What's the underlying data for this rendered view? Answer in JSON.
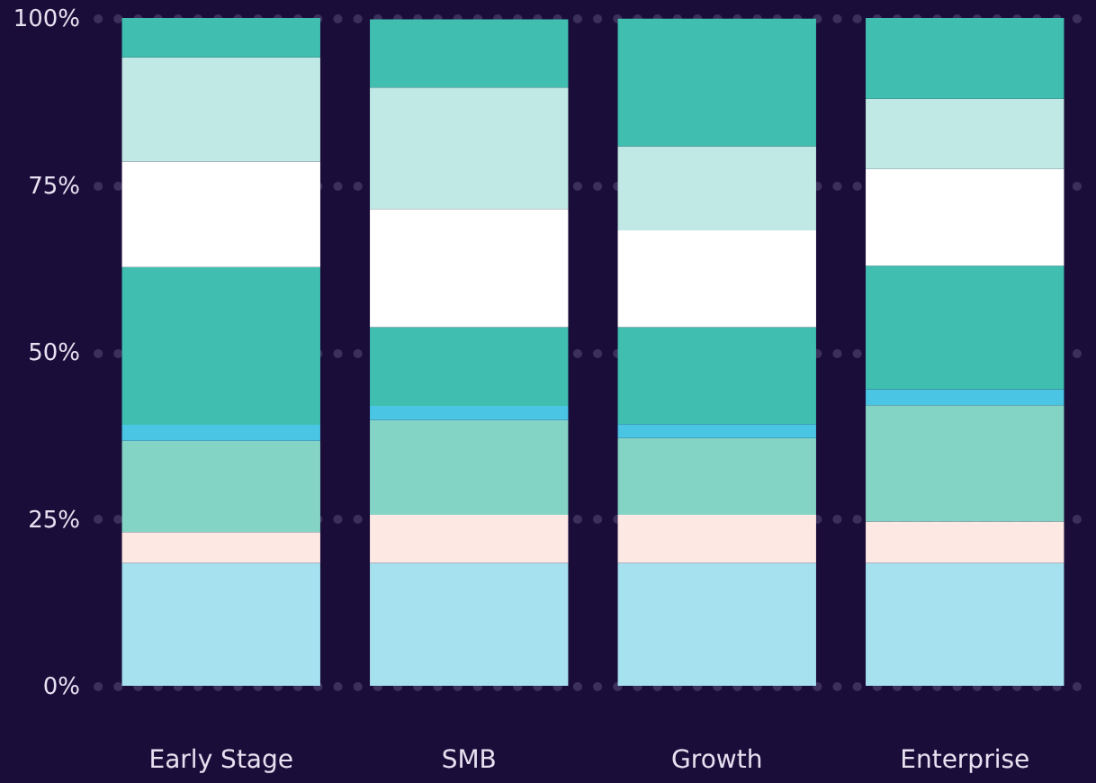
{
  "chart_data": {
    "type": "bar",
    "stacked": true,
    "categories": [
      "Early Stage",
      "SMB",
      "Growth",
      "Enterprise"
    ],
    "series": [
      {
        "color": "#a6e1f0",
        "values": [
          18.4,
          18.4,
          18.4,
          18.4
        ]
      },
      {
        "color": "#fde8e4",
        "values": [
          4.6,
          7.2,
          7.2,
          6.2
        ]
      },
      {
        "color": "#84d4c6",
        "values": [
          13.7,
          14.2,
          11.5,
          17.4
        ]
      },
      {
        "color": "#4bc5e4",
        "values": [
          2.4,
          2.1,
          2.1,
          2.4
        ]
      },
      {
        "color": "#40bfb0",
        "values": [
          23.6,
          11.8,
          14.5,
          18.5
        ]
      },
      {
        "color": "#ffffff",
        "values": [
          15.8,
          17.7,
          14.5,
          14.5
        ]
      },
      {
        "color": "#c0e8e4",
        "values": [
          15.6,
          18.2,
          12.6,
          10.5
        ]
      },
      {
        "color": "#40bfb0",
        "values": [
          5.9,
          10.2,
          19.1,
          12.1
        ]
      }
    ],
    "ylim": [
      0,
      100
    ],
    "yticks": [
      {
        "value": 0,
        "label": "0%"
      },
      {
        "value": 25,
        "label": "25%"
      },
      {
        "value": 50,
        "label": "50%"
      },
      {
        "value": 75,
        "label": "75%"
      },
      {
        "value": 100,
        "label": "100%"
      }
    ],
    "grid": "y"
  }
}
